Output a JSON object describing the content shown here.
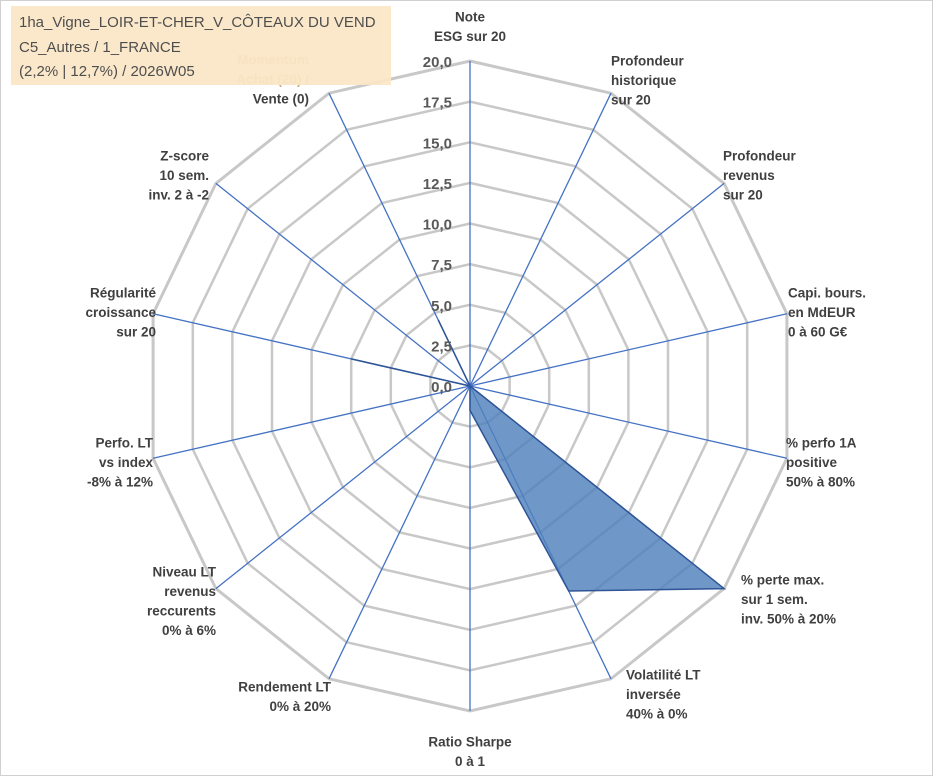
{
  "info": {
    "line1": "1ha_Vigne_LOIR-ET-CHER_V_CÔTEAUX DU VEND",
    "line2": "C5_Autres / 1_FRANCE",
    "line3": "(2,2% | 12,7%) / 2026W05"
  },
  "colors": {
    "grid": "#c8c8c8",
    "spoke": "#4472c4",
    "fill": "#4f81bd",
    "stroke": "#2f5597",
    "infobox": "#fbe7c6"
  },
  "chart_data": {
    "type": "radar",
    "range": [
      0,
      20
    ],
    "ticks": [
      "0,0",
      "2,5",
      "5,0",
      "7,5",
      "10,0",
      "12,5",
      "15,0",
      "17,5",
      "20,0"
    ],
    "grid": true,
    "axes": [
      [
        "Note",
        "ESG sur 20"
      ],
      [
        "Profondeur",
        "historique",
        "sur 20"
      ],
      [
        "Profondeur",
        "revenus",
        "sur 20"
      ],
      [
        "Capi. bours.",
        "en MdEUR",
        "0 à 60 G€"
      ],
      [
        "% perfo 1A",
        "positive",
        "50% à 80%"
      ],
      [
        "% perte max.",
        "sur 1 sem.",
        "inv. 50% à 20%"
      ],
      [
        "Volatilité LT",
        "inversée",
        "40% à 0%"
      ],
      [
        "Ratio Sharpe",
        "0 à 1"
      ],
      [
        "Rendement LT",
        "0% à 20%"
      ],
      [
        "Niveau LT",
        "revenus",
        "reccurents",
        "0% à 6%"
      ],
      [
        "Perfo. LT",
        "vs index",
        "-8% à 12%"
      ],
      [
        "Régularité",
        "croissance",
        "sur 20"
      ],
      [
        "Z-score",
        "10 sem.",
        "inv. 2 à -2"
      ],
      [
        "Momentum",
        "Achat (20) /",
        "Vente (0)"
      ]
    ],
    "series": [
      {
        "values": [
          0,
          0,
          0,
          0,
          0,
          20,
          14,
          1.5,
          0,
          0,
          0,
          7.5,
          0,
          4.5
        ]
      }
    ]
  }
}
